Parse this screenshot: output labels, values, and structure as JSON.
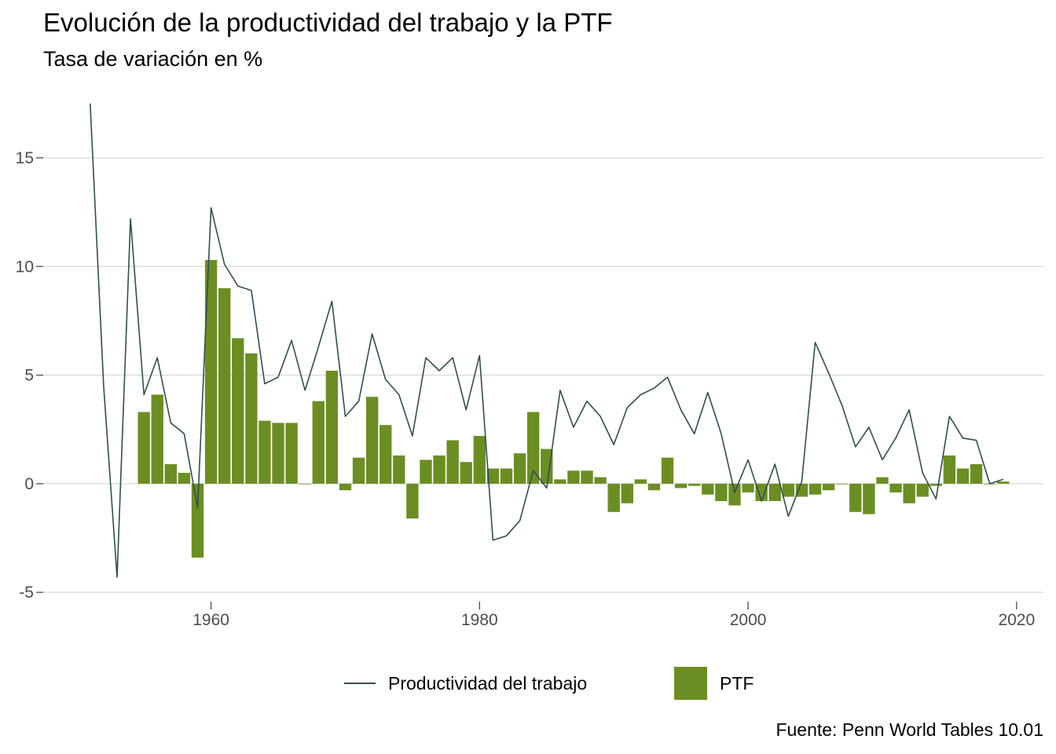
{
  "chart_data": {
    "type": "bar+line",
    "title": "Evolución de la productividad del trabajo y la PTF",
    "subtitle": "Tasa de variación en %",
    "caption": "Fuente: Penn World Tables 10.01",
    "xlabel": "",
    "ylabel": "",
    "xlim": [
      1947.5,
      2022
    ],
    "ylim": [
      -5.5,
      18
    ],
    "x_ticks": [
      1960,
      1980,
      2000,
      2020
    ],
    "y_ticks": [
      -5,
      0,
      5,
      10,
      15
    ],
    "grid": "horizontal",
    "legend_position": "bottom",
    "colors": {
      "line": "#2f4f4f",
      "bar": "#6b8e23",
      "grid": "#d9d9d9"
    },
    "series": [
      {
        "name": "Productividad del trabajo",
        "kind": "line",
        "x": [
          1951,
          1952,
          1953,
          1954,
          1955,
          1956,
          1957,
          1958,
          1959,
          1960,
          1961,
          1962,
          1963,
          1964,
          1965,
          1966,
          1967,
          1968,
          1969,
          1970,
          1971,
          1972,
          1973,
          1974,
          1975,
          1976,
          1977,
          1978,
          1979,
          1980,
          1981,
          1982,
          1983,
          1984,
          1985,
          1986,
          1987,
          1988,
          1989,
          1990,
          1991,
          1992,
          1993,
          1994,
          1995,
          1996,
          1997,
          1998,
          1999,
          2000,
          2001,
          2002,
          2003,
          2004,
          2005,
          2006,
          2007,
          2008,
          2009,
          2010,
          2011,
          2012,
          2013,
          2014,
          2015,
          2016,
          2017,
          2018,
          2019
        ],
        "values": [
          17.5,
          4.5,
          -4.3,
          12.2,
          4.1,
          5.8,
          2.8,
          2.3,
          -1.1,
          12.7,
          10.1,
          9.1,
          8.9,
          4.6,
          4.9,
          6.6,
          4.3,
          6.3,
          8.4,
          3.1,
          3.8,
          6.9,
          4.8,
          4.1,
          2.2,
          5.8,
          5.2,
          5.8,
          3.4,
          5.9,
          -2.6,
          -2.4,
          -1.7,
          0.6,
          -0.2,
          4.3,
          2.6,
          3.8,
          3.1,
          1.8,
          3.5,
          4.1,
          4.4,
          4.9,
          3.4,
          2.3,
          4.2,
          2.3,
          -0.4,
          1.1,
          -0.8,
          0.9,
          -1.5,
          0.1,
          6.5,
          5.1,
          3.6,
          1.7,
          2.6,
          1.1,
          2.1,
          3.4,
          0.5,
          -0.7,
          3.1,
          2.1,
          2.0,
          0.0,
          0.2
        ]
      },
      {
        "name": "PTF",
        "kind": "bar",
        "x": [
          1955,
          1956,
          1957,
          1958,
          1959,
          1960,
          1961,
          1962,
          1963,
          1964,
          1965,
          1966,
          1967,
          1968,
          1969,
          1970,
          1971,
          1972,
          1973,
          1974,
          1975,
          1976,
          1977,
          1978,
          1979,
          1980,
          1981,
          1982,
          1983,
          1984,
          1985,
          1986,
          1987,
          1988,
          1989,
          1990,
          1991,
          1992,
          1993,
          1994,
          1995,
          1996,
          1997,
          1998,
          1999,
          2000,
          2001,
          2002,
          2003,
          2004,
          2005,
          2006,
          2007,
          2008,
          2009,
          2010,
          2011,
          2012,
          2013,
          2014,
          2015,
          2016,
          2017,
          2018,
          2019
        ],
        "values": [
          3.3,
          4.1,
          0.9,
          0.5,
          -3.4,
          10.3,
          9.0,
          6.7,
          6.0,
          2.9,
          2.8,
          2.8,
          0.0,
          3.8,
          5.2,
          -0.3,
          1.2,
          4.0,
          2.7,
          1.3,
          -1.6,
          1.1,
          1.3,
          2.0,
          1.0,
          2.2,
          0.7,
          0.7,
          1.4,
          3.3,
          1.6,
          0.2,
          0.6,
          0.6,
          0.3,
          -1.3,
          -0.9,
          0.2,
          -0.3,
          1.2,
          -0.2,
          -0.1,
          -0.5,
          -0.8,
          -1.0,
          -0.4,
          -0.8,
          -0.8,
          -0.6,
          -0.6,
          -0.5,
          -0.3,
          0.0,
          -1.3,
          -1.4,
          0.3,
          -0.4,
          -0.9,
          -0.6,
          -0.1,
          1.3,
          0.7,
          0.9,
          0.0,
          0.1
        ]
      }
    ]
  }
}
